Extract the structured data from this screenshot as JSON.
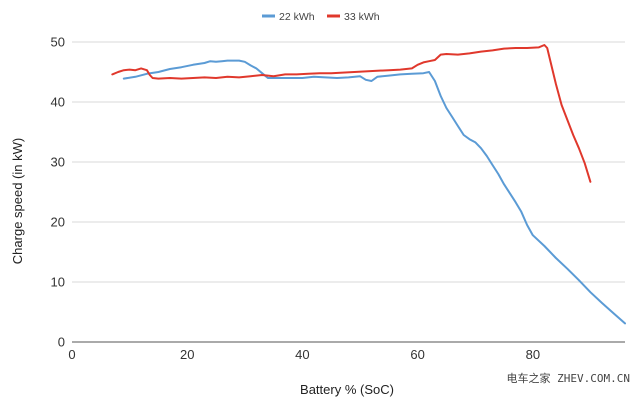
{
  "chart_data": {
    "type": "line",
    "xlabel": "Battery % (SoC)",
    "ylabel": "Charge speed (in kW)",
    "xlim": [
      0,
      96
    ],
    "ylim": [
      0,
      50
    ],
    "xticks": [
      0,
      20,
      40,
      60,
      80
    ],
    "yticks": [
      0,
      10,
      20,
      30,
      40,
      50
    ],
    "x_tick_labels": [
      "0",
      "20",
      "40",
      "60",
      "80"
    ],
    "y_tick_labels": [
      "0",
      "10",
      "20",
      "30",
      "40",
      "50"
    ],
    "grid": "horizontal",
    "legend_position": "top",
    "series": [
      {
        "name": "22 kWh",
        "color": "#5b9bd5",
        "points": [
          [
            9,
            43.9
          ],
          [
            11,
            44.2
          ],
          [
            13,
            44.7
          ],
          [
            15,
            45.0
          ],
          [
            17,
            45.5
          ],
          [
            19,
            45.8
          ],
          [
            21,
            46.2
          ],
          [
            23,
            46.5
          ],
          [
            24,
            46.8
          ],
          [
            25,
            46.7
          ],
          [
            26,
            46.8
          ],
          [
            27,
            46.9
          ],
          [
            28,
            46.9
          ],
          [
            29,
            46.9
          ],
          [
            30,
            46.7
          ],
          [
            31,
            46.1
          ],
          [
            32,
            45.6
          ],
          [
            33,
            44.8
          ],
          [
            34,
            44.0
          ],
          [
            36,
            44.0
          ],
          [
            38,
            44.0
          ],
          [
            40,
            44.0
          ],
          [
            42,
            44.2
          ],
          [
            44,
            44.1
          ],
          [
            46,
            44.0
          ],
          [
            48,
            44.1
          ],
          [
            50,
            44.3
          ],
          [
            51,
            43.7
          ],
          [
            52,
            43.5
          ],
          [
            53,
            44.2
          ],
          [
            55,
            44.4
          ],
          [
            57,
            44.6
          ],
          [
            59,
            44.7
          ],
          [
            61,
            44.8
          ],
          [
            62,
            45.0
          ],
          [
            63,
            43.5
          ],
          [
            64,
            41.0
          ],
          [
            65,
            39.0
          ],
          [
            66,
            37.5
          ],
          [
            67,
            36.0
          ],
          [
            68,
            34.5
          ],
          [
            69,
            33.8
          ],
          [
            70,
            33.3
          ],
          [
            71,
            32.3
          ],
          [
            72,
            31.0
          ],
          [
            73,
            29.5
          ],
          [
            74,
            28.0
          ],
          [
            75,
            26.3
          ],
          [
            76,
            24.8
          ],
          [
            77,
            23.3
          ],
          [
            78,
            21.7
          ],
          [
            79,
            19.5
          ],
          [
            80,
            17.8
          ],
          [
            82,
            16.0
          ],
          [
            84,
            14.0
          ],
          [
            86,
            12.2
          ],
          [
            88,
            10.3
          ],
          [
            90,
            8.3
          ],
          [
            92,
            6.5
          ],
          [
            94,
            4.8
          ],
          [
            96,
            3.1
          ]
        ]
      },
      {
        "name": "33 kWh",
        "color": "#e0382c",
        "points": [
          [
            7,
            44.6
          ],
          [
            8,
            45.0
          ],
          [
            9,
            45.3
          ],
          [
            10,
            45.4
          ],
          [
            11,
            45.3
          ],
          [
            12,
            45.6
          ],
          [
            13,
            45.3
          ],
          [
            13.5,
            44.5
          ],
          [
            14,
            44.0
          ],
          [
            15,
            43.9
          ],
          [
            17,
            44.0
          ],
          [
            19,
            43.9
          ],
          [
            21,
            44.0
          ],
          [
            23,
            44.1
          ],
          [
            25,
            44.0
          ],
          [
            27,
            44.2
          ],
          [
            29,
            44.1
          ],
          [
            31,
            44.3
          ],
          [
            33,
            44.5
          ],
          [
            35,
            44.3
          ],
          [
            37,
            44.6
          ],
          [
            39,
            44.6
          ],
          [
            41,
            44.7
          ],
          [
            43,
            44.8
          ],
          [
            45,
            44.8
          ],
          [
            47,
            44.9
          ],
          [
            49,
            45.0
          ],
          [
            51,
            45.1
          ],
          [
            53,
            45.2
          ],
          [
            55,
            45.3
          ],
          [
            57,
            45.4
          ],
          [
            59,
            45.6
          ],
          [
            60,
            46.2
          ],
          [
            61,
            46.6
          ],
          [
            62,
            46.8
          ],
          [
            63,
            47.0
          ],
          [
            64,
            47.9
          ],
          [
            65,
            48.0
          ],
          [
            67,
            47.9
          ],
          [
            69,
            48.1
          ],
          [
            71,
            48.4
          ],
          [
            73,
            48.6
          ],
          [
            75,
            48.9
          ],
          [
            77,
            49.0
          ],
          [
            79,
            49.0
          ],
          [
            81,
            49.1
          ],
          [
            82,
            49.5
          ],
          [
            82.5,
            49.0
          ],
          [
            83,
            47.0
          ],
          [
            84,
            43.0
          ],
          [
            85,
            39.5
          ],
          [
            86,
            37.0
          ],
          [
            87,
            34.5
          ],
          [
            88,
            32.3
          ],
          [
            89,
            29.8
          ],
          [
            90,
            26.7
          ]
        ]
      }
    ]
  },
  "watermark": "电车之家 ZHEV.COM.CN"
}
